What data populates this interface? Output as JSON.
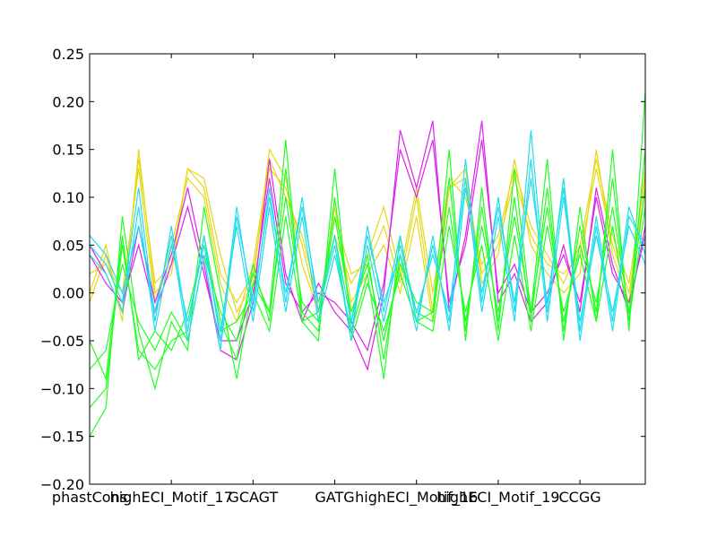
{
  "chart_data": {
    "type": "line",
    "title": "",
    "xlabel": "",
    "ylabel": "",
    "ylim": [
      -0.2,
      0.25
    ],
    "y_ticks": [
      -0.2,
      -0.15,
      -0.1,
      -0.05,
      0.0,
      0.05,
      0.1,
      0.15,
      0.2,
      0.25
    ],
    "y_tick_labels": [
      "−0.20",
      "−0.15",
      "−0.10",
      "−0.05",
      "0.00",
      "0.05",
      "0.10",
      "0.15",
      "0.20",
      "0.25"
    ],
    "x_index_range": [
      0,
      34
    ],
    "x_tick_labels": [
      {
        "index": 0,
        "label": "phastCons"
      },
      {
        "index": 5,
        "label": "highECI_Motif_17"
      },
      {
        "index": 10,
        "label": "GCAGT"
      },
      {
        "index": 15,
        "label": "GATG"
      },
      {
        "index": 20,
        "label": "highECI_Motif_16"
      },
      {
        "index": 25,
        "label": "highECI_Motif_19"
      },
      {
        "index": 30,
        "label": "CCGG"
      }
    ],
    "grid": false,
    "legend": "none",
    "series_groups": [
      {
        "color": "#e6d818",
        "lines": [
          [
            0.0,
            0.05,
            -0.03,
            0.15,
            0.0,
            0.02,
            0.13,
            0.12,
            0.04,
            -0.02,
            0.01,
            0.15,
            0.12,
            0.03,
            -0.02,
            0.09,
            -0.01,
            0.02,
            0.05,
            0.0,
            0.08,
            -0.03,
            0.11,
            0.13,
            0.01,
            0.04,
            0.14,
            0.05,
            0.02,
            0.0,
            0.02,
            0.15,
            0.04,
            -0.01,
            0.13
          ],
          [
            0.02,
            0.03,
            0.0,
            0.13,
            -0.01,
            0.05,
            0.12,
            0.1,
            0.01,
            -0.03,
            0.03,
            0.14,
            0.1,
            0.06,
            -0.01,
            0.06,
            0.01,
            0.04,
            0.09,
            0.02,
            0.11,
            0.0,
            0.12,
            0.1,
            0.03,
            0.06,
            0.13,
            0.07,
            0.04,
            0.01,
            0.05,
            0.14,
            0.06,
            0.01,
            0.12
          ],
          [
            -0.01,
            0.04,
            -0.02,
            0.14,
            0.01,
            0.03,
            0.13,
            0.11,
            0.02,
            -0.01,
            0.02,
            0.13,
            0.11,
            0.05,
            -0.02,
            0.08,
            0.02,
            0.03,
            0.07,
            0.01,
            0.1,
            -0.02,
            0.11,
            0.12,
            0.02,
            0.05,
            0.12,
            0.06,
            0.03,
            0.02,
            0.04,
            0.13,
            0.05,
            0.0,
            0.11
          ]
        ]
      },
      {
        "color": "#dd22ee",
        "lines": [
          [
            0.05,
            0.02,
            -0.02,
            0.07,
            -0.01,
            0.04,
            0.11,
            0.03,
            -0.06,
            -0.07,
            -0.01,
            0.14,
            0.02,
            -0.03,
            0.01,
            -0.02,
            -0.04,
            -0.08,
            0.0,
            0.17,
            0.11,
            0.18,
            -0.02,
            0.06,
            0.18,
            -0.01,
            0.02,
            -0.03,
            -0.01,
            0.05,
            -0.02,
            0.11,
            0.03,
            -0.02,
            0.07
          ],
          [
            0.04,
            0.01,
            -0.01,
            0.05,
            -0.02,
            0.03,
            0.09,
            0.02,
            -0.05,
            -0.05,
            0.0,
            0.12,
            0.01,
            -0.02,
            0.0,
            -0.01,
            -0.03,
            -0.06,
            0.01,
            0.15,
            0.1,
            0.16,
            -0.01,
            0.05,
            0.16,
            0.0,
            0.03,
            -0.02,
            0.0,
            0.04,
            -0.01,
            0.1,
            0.02,
            -0.01,
            0.06
          ]
        ]
      },
      {
        "color": "#22ff22",
        "lines": [
          [
            -0.15,
            -0.12,
            0.08,
            -0.04,
            -0.1,
            -0.03,
            -0.06,
            0.09,
            0.0,
            -0.09,
            0.01,
            -0.02,
            0.16,
            -0.03,
            -0.05,
            0.13,
            -0.04,
            0.02,
            -0.09,
            0.06,
            -0.03,
            -0.02,
            0.15,
            -0.05,
            0.11,
            -0.04,
            0.13,
            -0.02,
            0.14,
            -0.05,
            0.09,
            -0.03,
            0.15,
            -0.04,
            0.21
          ],
          [
            -0.12,
            -0.1,
            0.05,
            -0.06,
            -0.08,
            -0.05,
            -0.04,
            0.06,
            -0.03,
            -0.07,
            0.03,
            -0.03,
            0.13,
            -0.02,
            -0.04,
            0.1,
            -0.03,
            0.04,
            -0.07,
            0.04,
            -0.02,
            -0.03,
            0.12,
            -0.04,
            0.09,
            -0.03,
            0.1,
            -0.03,
            0.11,
            -0.04,
            0.07,
            -0.02,
            0.12,
            -0.03,
            0.15
          ],
          [
            -0.08,
            -0.06,
            0.03,
            -0.03,
            -0.06,
            -0.02,
            -0.05,
            0.04,
            -0.02,
            -0.05,
            0.02,
            -0.02,
            0.1,
            -0.01,
            -0.03,
            0.08,
            -0.02,
            0.03,
            -0.05,
            0.03,
            -0.01,
            -0.02,
            0.09,
            -0.03,
            0.07,
            -0.02,
            0.08,
            -0.02,
            0.09,
            -0.03,
            0.05,
            -0.01,
            0.09,
            -0.02,
            0.11
          ],
          [
            -0.05,
            -0.09,
            0.06,
            -0.07,
            -0.04,
            -0.06,
            -0.02,
            0.05,
            -0.04,
            -0.03,
            0.0,
            -0.04,
            0.08,
            -0.03,
            -0.02,
            0.06,
            -0.05,
            0.01,
            -0.04,
            0.02,
            -0.03,
            -0.04,
            0.07,
            -0.02,
            0.05,
            -0.05,
            0.06,
            -0.04,
            0.07,
            -0.02,
            0.04,
            -0.03,
            0.07,
            -0.03,
            0.09
          ]
        ]
      },
      {
        "color": "#22ddee",
        "lines": [
          [
            0.05,
            0.03,
            -0.01,
            0.11,
            -0.03,
            0.07,
            -0.04,
            0.06,
            -0.05,
            0.09,
            -0.02,
            0.11,
            -0.01,
            0.1,
            -0.02,
            0.05,
            -0.05,
            0.07,
            -0.02,
            0.06,
            -0.03,
            0.05,
            -0.03,
            0.14,
            -0.01,
            0.1,
            -0.02,
            0.17,
            -0.02,
            0.12,
            -0.04,
            0.08,
            -0.03,
            0.09,
            0.04
          ],
          [
            0.04,
            0.02,
            -0.02,
            0.09,
            -0.04,
            0.05,
            -0.03,
            0.05,
            -0.04,
            0.07,
            -0.03,
            0.09,
            -0.02,
            0.08,
            -0.03,
            0.04,
            -0.04,
            0.05,
            -0.03,
            0.05,
            -0.02,
            0.04,
            -0.02,
            0.12,
            -0.02,
            0.08,
            -0.03,
            0.14,
            -0.03,
            0.1,
            -0.03,
            0.06,
            -0.02,
            0.07,
            0.03
          ],
          [
            0.06,
            0.04,
            0.0,
            0.07,
            -0.02,
            0.06,
            -0.05,
            0.04,
            -0.06,
            0.08,
            -0.01,
            0.1,
            0.0,
            0.09,
            -0.01,
            0.06,
            -0.03,
            0.06,
            -0.01,
            0.04,
            -0.04,
            0.06,
            -0.04,
            0.11,
            0.0,
            0.09,
            -0.01,
            0.12,
            -0.01,
            0.11,
            -0.05,
            0.07,
            -0.04,
            0.08,
            0.05
          ]
        ]
      }
    ]
  }
}
